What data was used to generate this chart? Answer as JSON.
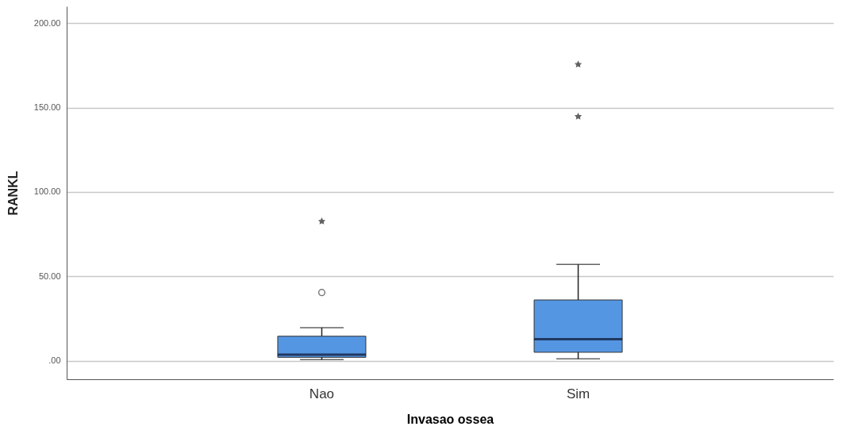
{
  "chart_data": {
    "type": "box",
    "xlabel": "Invasao ossea",
    "ylabel": "RANKL",
    "categories": [
      "Nao",
      "Sim"
    ],
    "boxes": [
      {
        "low": 0.6,
        "q1": 2,
        "median": 3.6,
        "q3": 14.5,
        "high": 19.6,
        "outliers": [
          40.4,
          82.6
        ]
      },
      {
        "low": 1.1,
        "q1": 5,
        "median": 12.8,
        "q3": 36,
        "high": 57.1,
        "outliers": [
          144.7,
          175.6
        ]
      }
    ],
    "color": "#5596e3",
    "ylim": [
      -11,
      210
    ],
    "yticks": [
      {
        "value": 0,
        "label": ".00"
      },
      {
        "value": 50,
        "label": "50.00"
      },
      {
        "value": 100,
        "label": "100.00"
      },
      {
        "value": 150,
        "label": "150.00"
      },
      {
        "value": 200,
        "label": "200.00"
      }
    ],
    "grid": "y"
  }
}
